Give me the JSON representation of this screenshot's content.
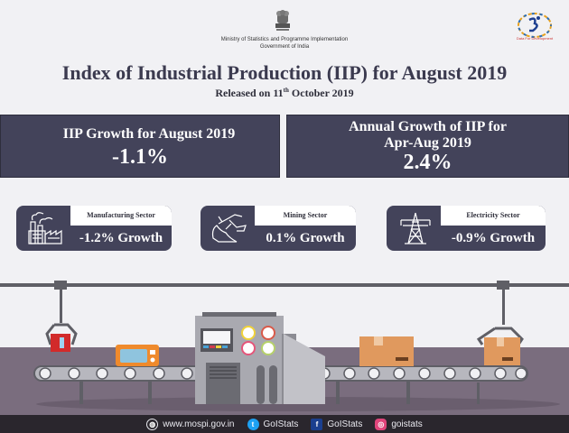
{
  "header": {
    "ministry": "Ministry of Statistics and Programme Implementation",
    "government": "Government of India",
    "logo_tagline": "Data For Development"
  },
  "title": "Index of Industrial Production (IIP) for August 2019",
  "subtitle": {
    "prefix": "Released on 11",
    "sup": "th",
    "suffix": " October 2019"
  },
  "panels": {
    "monthly": {
      "heading": "IIP Growth for August 2019",
      "value": "-1.1%"
    },
    "annual": {
      "heading_line1": "Annual Growth of IIP for",
      "heading_line2": "Apr-Aug 2019",
      "value": "2.4%"
    }
  },
  "sectors": [
    {
      "name": "Manufacturing Sector",
      "growth": "-1.2% Growth",
      "icon": "factory-icon"
    },
    {
      "name": "Mining Sector",
      "growth": "0.1% Growth",
      "icon": "mining-icon"
    },
    {
      "name": "Electricity Sector",
      "growth": "-0.9% Growth",
      "icon": "power-tower-icon"
    }
  ],
  "footer": {
    "website": "www.mospi.gov.in",
    "twitter": "GoIStats",
    "facebook": "GoIStats",
    "instagram": "goistats"
  },
  "colors": {
    "panel": "#43435a",
    "background": "#f1f1f4",
    "floor": "#7a6d7e",
    "footer": "#2a262d"
  }
}
